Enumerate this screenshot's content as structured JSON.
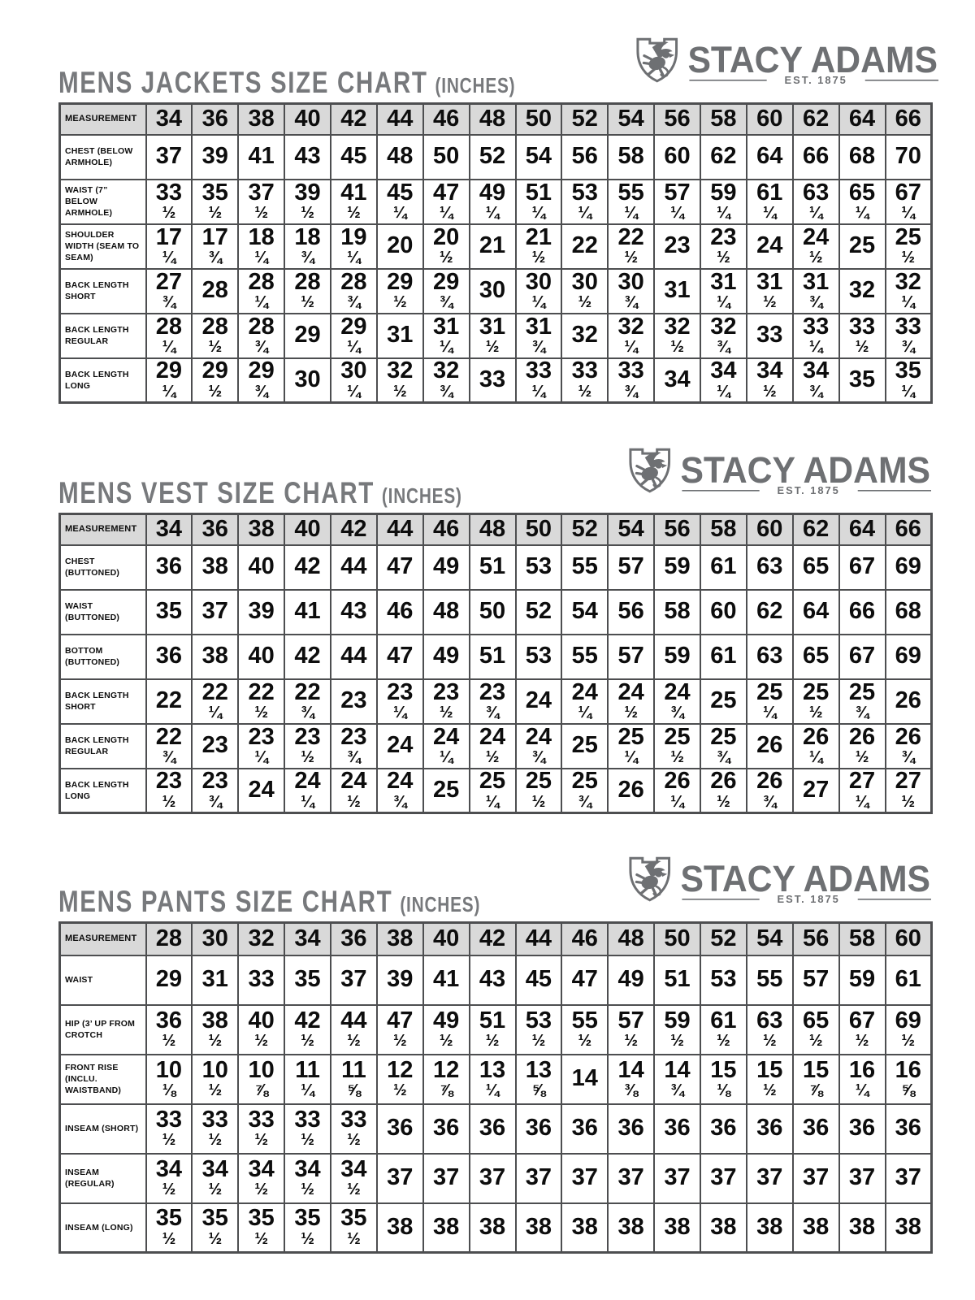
{
  "brand": {
    "name": "STACY ADAMS",
    "tagline": "EST. 1875",
    "logo_icon": "griffin-shield-icon",
    "logo_color": "#6e7073"
  },
  "colors": {
    "page_bg": "#ffffff",
    "header_cell_bg": "#d9d9d9",
    "table_border": "#4d4e50",
    "title_text": "#77797c",
    "cell_text": "#0d0d0d"
  },
  "charts": [
    {
      "title": "MENS JACKETS SIZE CHART",
      "title_suffix": "(INCHES)",
      "header_label": "MEASUREMENT",
      "sizes": [
        "34",
        "36",
        "38",
        "40",
        "42",
        "44",
        "46",
        "48",
        "50",
        "52",
        "54",
        "56",
        "58",
        "60",
        "62",
        "64",
        "66"
      ],
      "rows": [
        {
          "label": "CHEST (BELOW ARMHOLE)",
          "values": [
            "37",
            "39",
            "41",
            "43",
            "45",
            "48",
            "50",
            "52",
            "54",
            "56",
            "58",
            "60",
            "62",
            "64",
            "66",
            "68",
            "70"
          ]
        },
        {
          "label": "WAIST (7” BELOW ARMHOLE)",
          "values": [
            "33½",
            "35½",
            "37½",
            "39½",
            "41½",
            "45¼",
            "47¼",
            "49¼",
            "51¼",
            "53¼",
            "55¼",
            "57¼",
            "59¼",
            "61¼",
            "63¼",
            "65¼",
            "67¼"
          ]
        },
        {
          "label": "SHOULDER WIDTH (SEAM TO SEAM)",
          "values": [
            "17¼",
            "17¾",
            "18¼",
            "18¾",
            "19¼",
            "20",
            "20½",
            "21",
            "21½",
            "22",
            "22½",
            "23",
            "23½",
            "24",
            "24½",
            "25",
            "25½"
          ]
        },
        {
          "label": "BACK LENGTH SHORT",
          "values": [
            "27¾",
            "28",
            "28¼",
            "28½",
            "28¾",
            "29½",
            "29¾",
            "30",
            "30¼",
            "30½",
            "30¾",
            "31",
            "31¼",
            "31½",
            "31¾",
            "32",
            "32¼"
          ]
        },
        {
          "label": "BACK LENGTH REGULAR",
          "values": [
            "28¼",
            "28½",
            "28¾",
            "29",
            "29¼",
            "31",
            "31¼",
            "31½",
            "31¾",
            "32",
            "32¼",
            "32½",
            "32¾",
            "33",
            "33¼",
            "33½",
            "33¾"
          ]
        },
        {
          "label": "BACK LENGTH LONG",
          "values": [
            "29¼",
            "29½",
            "29¾",
            "30",
            "30¼",
            "32½",
            "32¾",
            "33",
            "33¼",
            "33½",
            "33¾",
            "34",
            "34¼",
            "34½",
            "34¾",
            "35",
            "35¼"
          ]
        }
      ]
    },
    {
      "title": "MENS VEST SIZE CHART",
      "title_suffix": "(INCHES)",
      "header_label": "MEASUREMENT",
      "sizes": [
        "34",
        "36",
        "38",
        "40",
        "42",
        "44",
        "46",
        "48",
        "50",
        "52",
        "54",
        "56",
        "58",
        "60",
        "62",
        "64",
        "66"
      ],
      "rows": [
        {
          "label": "CHEST (BUTTONED)",
          "values": [
            "36",
            "38",
            "40",
            "42",
            "44",
            "47",
            "49",
            "51",
            "53",
            "55",
            "57",
            "59",
            "61",
            "63",
            "65",
            "67",
            "69"
          ]
        },
        {
          "label": "WAIST (BUTTONED)",
          "values": [
            "35",
            "37",
            "39",
            "41",
            "43",
            "46",
            "48",
            "50",
            "52",
            "54",
            "56",
            "58",
            "60",
            "62",
            "64",
            "66",
            "68"
          ]
        },
        {
          "label": "BOTTOM (BUTTONED)",
          "values": [
            "36",
            "38",
            "40",
            "42",
            "44",
            "47",
            "49",
            "51",
            "53",
            "55",
            "57",
            "59",
            "61",
            "63",
            "65",
            "67",
            "69"
          ]
        },
        {
          "label": "BACK LENGTH SHORT",
          "values": [
            "22",
            "22¼",
            "22½",
            "22¾",
            "23",
            "23¼",
            "23½",
            "23¾",
            "24",
            "24¼",
            "24½",
            "24¾",
            "25",
            "25¼",
            "25½",
            "25¾",
            "26"
          ]
        },
        {
          "label": "BACK LENGTH REGULAR",
          "values": [
            "22¾",
            "23",
            "23¼",
            "23½",
            "23¾",
            "24",
            "24¼",
            "24½",
            "24¾",
            "25",
            "25¼",
            "25½",
            "25¾",
            "26",
            "26¼",
            "26½",
            "26¾"
          ]
        },
        {
          "label": "BACK LENGTH LONG",
          "values": [
            "23½",
            "23¾",
            "24",
            "24¼",
            "24½",
            "24¾",
            "25",
            "25¼",
            "25½",
            "25¾",
            "26",
            "26¼",
            "26½",
            "26¾",
            "27",
            "27¼",
            "27½"
          ]
        }
      ]
    },
    {
      "title": "MENS PANTS SIZE CHART",
      "title_suffix": "(INCHES)",
      "header_label": "MEASUREMENT",
      "sizes": [
        "28",
        "30",
        "32",
        "34",
        "36",
        "38",
        "40",
        "42",
        "44",
        "46",
        "48",
        "50",
        "52",
        "54",
        "56",
        "58",
        "60"
      ],
      "rows": [
        {
          "label": "WAIST",
          "values": [
            "29",
            "31",
            "33",
            "35",
            "37",
            "39",
            "41",
            "43",
            "45",
            "47",
            "49",
            "51",
            "53",
            "55",
            "57",
            "59",
            "61"
          ]
        },
        {
          "label": "HIP (3’ UP FROM CROTCH",
          "values": [
            "36½",
            "38½",
            "40½",
            "42½",
            "44½",
            "47½",
            "49½",
            "51½",
            "53½",
            "55½",
            "57½",
            "59½",
            "61½",
            "63½",
            "65½",
            "67½",
            "69½"
          ]
        },
        {
          "label": "FRONT RISE (INCLU. WAISTBAND)",
          "values": [
            "10⅛",
            "10½",
            "10⅞",
            "11¼",
            "11⅝",
            "12½",
            "12⅞",
            "13¼",
            "13⅝",
            "14",
            "14⅜",
            "14¾",
            "15⅛",
            "15½",
            "15⅞",
            "16¼",
            "16⅝"
          ]
        },
        {
          "label": "INSEAM (SHORT)",
          "values": [
            "33½",
            "33½",
            "33½",
            "33½",
            "33½",
            "36",
            "36",
            "36",
            "36",
            "36",
            "36",
            "36",
            "36",
            "36",
            "36",
            "36",
            "36"
          ]
        },
        {
          "label": "INSEAM (REGULAR)",
          "values": [
            "34½",
            "34½",
            "34½",
            "34½",
            "34½",
            "37",
            "37",
            "37",
            "37",
            "37",
            "37",
            "37",
            "37",
            "37",
            "37",
            "37",
            "37"
          ]
        },
        {
          "label": "INSEAM (LONG)",
          "values": [
            "35½",
            "35½",
            "35½",
            "35½",
            "35½",
            "38",
            "38",
            "38",
            "38",
            "38",
            "38",
            "38",
            "38",
            "38",
            "38",
            "38",
            "38"
          ]
        }
      ]
    }
  ]
}
